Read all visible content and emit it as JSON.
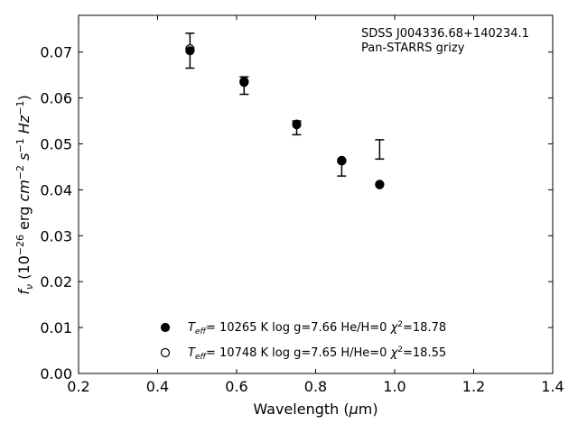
{
  "chart_data": {
    "type": "scatter",
    "title": "",
    "annotations": [
      "SDSS J004336.68+140234.1",
      "Pan-STARRS grizy"
    ],
    "xlabel": "Wavelength (μm)",
    "ylabel": "f_ν (10^-26 erg cm^-2 s^-1 Hz^-1)",
    "xlim": [
      0.2,
      1.4
    ],
    "ylim": [
      0.0,
      0.078
    ],
    "xticks": [
      0.2,
      0.4,
      0.6,
      0.8,
      1.0,
      1.2,
      1.4
    ],
    "xtick_labels": [
      "0.2",
      "0.4",
      "0.6",
      "0.8",
      "1.0",
      "1.2",
      "1.4"
    ],
    "yticks": [
      0.0,
      0.01,
      0.02,
      0.03,
      0.04,
      0.05,
      0.06,
      0.07
    ],
    "ytick_labels": [
      "0.00",
      "0.01",
      "0.02",
      "0.03",
      "0.04",
      "0.05",
      "0.06",
      "0.07"
    ],
    "grid": false,
    "legend_position": "lower-center",
    "observed": {
      "x": [
        0.482,
        0.619,
        0.752,
        0.866,
        0.962
      ],
      "y": [
        0.0703,
        0.0627,
        0.0535,
        0.0445,
        0.0488
      ],
      "yerr": [
        0.0038,
        0.0019,
        0.0015,
        0.0015,
        0.0021
      ]
    },
    "series": [
      {
        "name": "T_eff= 10265 K  log g=7.66  He/H=0  χ²=18.78",
        "marker": "filled-circle",
        "x": [
          0.482,
          0.619,
          0.752,
          0.866,
          0.962
        ],
        "y": [
          0.0703,
          0.0634,
          0.0542,
          0.0464,
          0.0412
        ]
      },
      {
        "name": "T_eff= 10748 K  log g=7.65  H/He=0  χ²=18.55",
        "marker": "open-circle",
        "x": [
          0.482,
          0.619,
          0.752,
          0.866,
          0.962
        ],
        "y": [
          0.0707,
          0.0636,
          0.0543,
          0.0463,
          0.0411
        ]
      }
    ],
    "colors": {
      "marker": "#000000",
      "axes": "#000000"
    }
  }
}
